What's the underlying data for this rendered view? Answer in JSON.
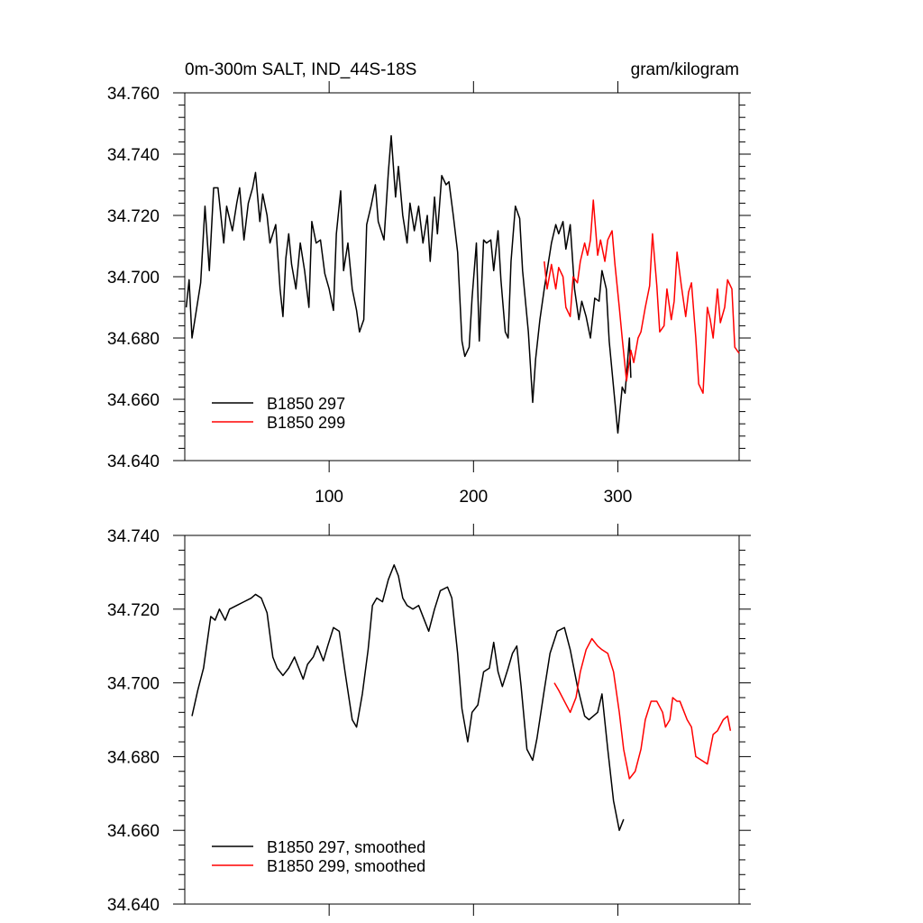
{
  "chart_data": [
    {
      "type": "line",
      "title": "0m-300m SALT, IND_44S-18S",
      "units": "gram/kilogram",
      "xlim": [
        0,
        384
      ],
      "xticks": [
        100,
        200,
        300
      ],
      "xtick_labels": true,
      "ylim": [
        34.64,
        34.76
      ],
      "yticks": [
        {
          "value": 34.64,
          "label": "34.640"
        },
        {
          "value": 34.66,
          "label": "34.660"
        },
        {
          "value": 34.68,
          "label": "34.680"
        },
        {
          "value": 34.7,
          "label": "34.700"
        },
        {
          "value": 34.72,
          "label": "34.720"
        },
        {
          "value": 34.74,
          "label": "34.740"
        },
        {
          "value": 34.76,
          "label": "34.760"
        }
      ],
      "legend": "lower-left",
      "series": [
        {
          "name": "B1850 297",
          "color": "#000000",
          "x": [
            1,
            3,
            5,
            8,
            11,
            14,
            17,
            20,
            23,
            27,
            29,
            33,
            36,
            38,
            41,
            44,
            47,
            49,
            52,
            54,
            57,
            59,
            63,
            66,
            68,
            70,
            72,
            74,
            77,
            80,
            83,
            86,
            88,
            91,
            94,
            97,
            100,
            103,
            105,
            108,
            110,
            113,
            116,
            119,
            121,
            124,
            126,
            129,
            132,
            134,
            138,
            141,
            143,
            146,
            148,
            151,
            154,
            156,
            159,
            162,
            165,
            168,
            170,
            173,
            175,
            178,
            181,
            183,
            186,
            189,
            192,
            194,
            197,
            199,
            202,
            204,
            207,
            209,
            212,
            214,
            217,
            219,
            222,
            224,
            226,
            229,
            232,
            234,
            238,
            241,
            243,
            246,
            249,
            251,
            254,
            257,
            259,
            262,
            264,
            267,
            270,
            273,
            275,
            278,
            281,
            284,
            287,
            289,
            292,
            294,
            297,
            300,
            303,
            305,
            308,
            309
          ],
          "values": [
            34.69,
            34.699,
            34.68,
            34.689,
            34.698,
            34.723,
            34.702,
            34.729,
            34.729,
            34.711,
            34.723,
            34.715,
            34.724,
            34.729,
            34.712,
            34.724,
            34.729,
            34.734,
            34.718,
            34.727,
            34.72,
            34.711,
            34.717,
            34.696,
            34.687,
            34.706,
            34.714,
            34.704,
            34.696,
            34.711,
            34.702,
            34.69,
            34.718,
            34.711,
            34.712,
            34.701,
            34.696,
            34.689,
            34.714,
            34.728,
            34.702,
            34.711,
            34.696,
            34.689,
            34.682,
            34.686,
            34.717,
            34.723,
            34.73,
            34.718,
            34.712,
            34.734,
            34.746,
            34.726,
            34.736,
            34.72,
            34.711,
            34.724,
            34.715,
            34.723,
            34.711,
            34.72,
            34.705,
            34.726,
            34.714,
            34.733,
            34.73,
            34.731,
            34.72,
            34.708,
            34.679,
            34.674,
            34.677,
            34.693,
            34.711,
            34.679,
            34.712,
            34.711,
            34.712,
            34.702,
            34.715,
            34.699,
            34.682,
            34.68,
            34.705,
            34.723,
            34.719,
            34.702,
            34.682,
            34.659,
            34.673,
            34.686,
            34.696,
            34.702,
            34.711,
            34.717,
            34.714,
            34.718,
            34.709,
            34.717,
            34.696,
            34.686,
            34.692,
            34.687,
            34.68,
            34.693,
            34.692,
            34.702,
            34.696,
            34.679,
            34.664,
            34.649,
            34.664,
            34.662,
            34.68,
            34.667
          ]
        },
        {
          "name": "B1850 299",
          "color": "#ff0000",
          "x": [
            249,
            251,
            254,
            257,
            259,
            262,
            264,
            267,
            269,
            272,
            274,
            277,
            279,
            281,
            283,
            286,
            288,
            291,
            293,
            296,
            298,
            301,
            303,
            306,
            309,
            311,
            314,
            316,
            319,
            322,
            324,
            327,
            329,
            332,
            334,
            337,
            339,
            341,
            344,
            347,
            349,
            351,
            354,
            356,
            359,
            362,
            364,
            366,
            369,
            371,
            374,
            376,
            379,
            381,
            384
          ],
          "values": [
            34.705,
            34.696,
            34.704,
            34.696,
            34.703,
            34.7,
            34.69,
            34.687,
            34.7,
            34.698,
            34.705,
            34.711,
            34.707,
            34.712,
            34.725,
            34.707,
            34.712,
            34.705,
            34.712,
            34.715,
            34.704,
            34.69,
            34.68,
            34.666,
            34.676,
            34.672,
            34.68,
            34.682,
            34.69,
            34.697,
            34.714,
            34.697,
            34.682,
            34.684,
            34.696,
            34.686,
            34.692,
            34.708,
            34.697,
            34.687,
            34.695,
            34.698,
            34.68,
            34.665,
            34.662,
            34.69,
            34.686,
            34.68,
            34.696,
            34.685,
            34.69,
            34.699,
            34.696,
            34.677,
            34.675
          ]
        }
      ]
    },
    {
      "type": "line",
      "xlim": [
        0,
        384
      ],
      "xticks": [
        100,
        200,
        300
      ],
      "xtick_labels": false,
      "ylim": [
        34.64,
        34.74
      ],
      "yticks": [
        {
          "value": 34.64,
          "label": "34.640"
        },
        {
          "value": 34.66,
          "label": "34.660"
        },
        {
          "value": 34.68,
          "label": "34.680"
        },
        {
          "value": 34.7,
          "label": "34.700"
        },
        {
          "value": 34.72,
          "label": "34.720"
        },
        {
          "value": 34.74,
          "label": "34.740"
        }
      ],
      "legend": "lower-left",
      "series": [
        {
          "name": "B1850 297, smoothed",
          "color": "#000000",
          "x": [
            5,
            9,
            13,
            18,
            21,
            24,
            28,
            31,
            36,
            41,
            46,
            49,
            53,
            57,
            61,
            64,
            68,
            72,
            76,
            79,
            82,
            85,
            89,
            92,
            96,
            99,
            103,
            107,
            111,
            116,
            119,
            123,
            127,
            130,
            133,
            137,
            141,
            145,
            148,
            151,
            154,
            158,
            162,
            166,
            169,
            173,
            177,
            182,
            185,
            189,
            192,
            196,
            199,
            203,
            207,
            211,
            214,
            217,
            220,
            224,
            227,
            230,
            233,
            237,
            241,
            244,
            249,
            253,
            258,
            263,
            267,
            272,
            277,
            280,
            283,
            286,
            289,
            293,
            297,
            301,
            304
          ],
          "values": [
            34.691,
            34.698,
            34.704,
            34.718,
            34.717,
            34.72,
            34.717,
            34.72,
            34.721,
            34.722,
            34.723,
            34.724,
            34.723,
            34.719,
            34.707,
            34.704,
            34.702,
            34.704,
            34.707,
            34.704,
            34.701,
            34.705,
            34.707,
            34.71,
            34.706,
            34.71,
            34.715,
            34.714,
            34.703,
            34.69,
            34.688,
            34.697,
            34.709,
            34.721,
            34.723,
            34.722,
            34.728,
            34.732,
            34.729,
            34.723,
            34.721,
            34.72,
            34.721,
            34.717,
            34.714,
            34.72,
            34.725,
            34.726,
            34.723,
            34.708,
            34.693,
            34.684,
            34.692,
            34.694,
            34.703,
            34.704,
            34.711,
            34.703,
            34.699,
            34.704,
            34.708,
            34.71,
            34.699,
            34.682,
            34.679,
            34.685,
            34.698,
            34.708,
            34.714,
            34.715,
            34.709,
            34.699,
            34.691,
            34.69,
            34.691,
            34.692,
            34.697,
            34.682,
            34.668,
            34.66,
            34.663
          ]
        },
        {
          "name": "B1850 299, smoothed",
          "color": "#ff0000",
          "x": [
            256,
            259,
            263,
            267,
            271,
            274,
            278,
            282,
            286,
            289,
            293,
            297,
            301,
            304,
            308,
            312,
            316,
            319,
            323,
            327,
            331,
            333,
            336,
            338,
            341,
            343,
            346,
            348,
            351,
            354,
            358,
            362,
            366,
            369,
            373,
            376,
            378
          ],
          "values": [
            34.7,
            34.698,
            34.695,
            34.692,
            34.696,
            34.703,
            34.709,
            34.712,
            34.71,
            34.709,
            34.708,
            34.703,
            34.692,
            34.682,
            34.674,
            34.676,
            34.682,
            34.69,
            34.695,
            34.695,
            34.692,
            34.688,
            34.69,
            34.696,
            34.695,
            34.695,
            34.692,
            34.69,
            34.688,
            34.68,
            34.679,
            34.678,
            34.686,
            34.687,
            34.69,
            34.691,
            34.687
          ]
        }
      ]
    }
  ]
}
